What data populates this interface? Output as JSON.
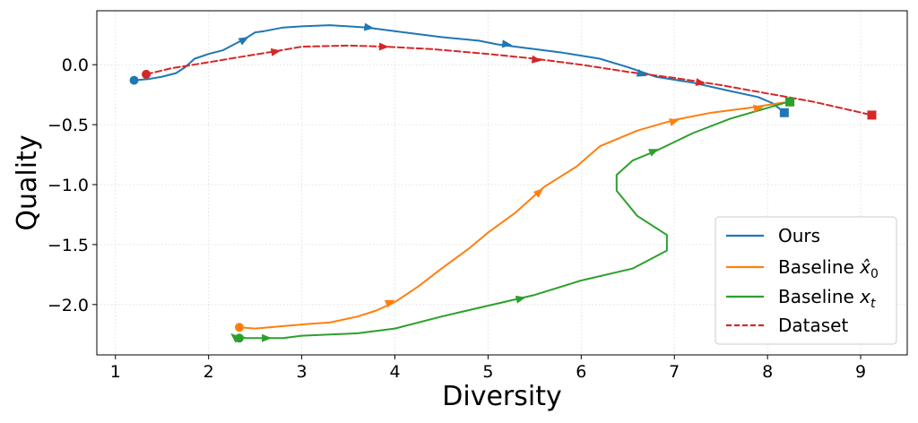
{
  "chart_data": {
    "type": "line",
    "xlabel": "Diversity",
    "ylabel": "Quality",
    "xlim": [
      0.8,
      9.5
    ],
    "ylim": [
      -2.42,
      0.45
    ],
    "xticks": [
      1,
      2,
      3,
      4,
      5,
      6,
      7,
      8,
      9
    ],
    "yticks": [
      0.0,
      -0.5,
      -1.0,
      -1.5,
      -2.0
    ],
    "ytick_labels": [
      "0.0",
      "−0.5",
      "−1.0",
      "−1.5",
      "−2.0"
    ],
    "grid": true,
    "legend_position": "lower-right",
    "series": [
      {
        "name": "Ours",
        "color": "#1f77b4",
        "dashed": false,
        "points": [
          [
            1.2,
            -0.13
          ],
          [
            1.35,
            -0.12
          ],
          [
            1.5,
            -0.1
          ],
          [
            1.65,
            -0.07
          ],
          [
            1.75,
            -0.02
          ],
          [
            1.85,
            0.05
          ],
          [
            2.0,
            0.09
          ],
          [
            2.15,
            0.12
          ],
          [
            2.35,
            0.2
          ],
          [
            2.42,
            0.23
          ],
          [
            2.5,
            0.27
          ],
          [
            2.6,
            0.28
          ],
          [
            2.8,
            0.31
          ],
          [
            3.0,
            0.32
          ],
          [
            3.3,
            0.33
          ],
          [
            3.7,
            0.31
          ],
          [
            4.1,
            0.27
          ],
          [
            4.5,
            0.23
          ],
          [
            4.9,
            0.2
          ],
          [
            5.1,
            0.17
          ],
          [
            5.4,
            0.14
          ],
          [
            5.8,
            0.1
          ],
          [
            6.2,
            0.05
          ],
          [
            6.5,
            -0.02
          ],
          [
            6.8,
            -0.1
          ],
          [
            7.2,
            -0.15
          ],
          [
            7.6,
            -0.22
          ],
          [
            7.9,
            -0.27
          ],
          [
            8.05,
            -0.32
          ],
          [
            8.17,
            -0.39
          ]
        ],
        "arrows_at": [
          [
            2.38,
            0.21
          ],
          [
            3.72,
            0.31
          ],
          [
            5.2,
            0.17
          ],
          [
            6.65,
            -0.08
          ]
        ]
      },
      {
        "name": "Baseline x̂₀",
        "color": "#ff7f0e",
        "dashed": false,
        "points": [
          [
            2.33,
            -2.19
          ],
          [
            2.5,
            -2.2
          ],
          [
            2.8,
            -2.18
          ],
          [
            3.1,
            -2.16
          ],
          [
            3.3,
            -2.15
          ],
          [
            3.6,
            -2.1
          ],
          [
            3.8,
            -2.05
          ],
          [
            4.0,
            -1.98
          ],
          [
            4.25,
            -1.85
          ],
          [
            4.5,
            -1.7
          ],
          [
            4.8,
            -1.53
          ],
          [
            5.0,
            -1.4
          ],
          [
            5.3,
            -1.23
          ],
          [
            5.6,
            -1.02
          ],
          [
            5.95,
            -0.85
          ],
          [
            6.2,
            -0.68
          ],
          [
            6.6,
            -0.55
          ],
          [
            7.0,
            -0.46
          ],
          [
            7.4,
            -0.4
          ],
          [
            7.8,
            -0.36
          ],
          [
            8.05,
            -0.33
          ],
          [
            8.22,
            -0.31
          ]
        ],
        "arrows_at": [
          [
            3.95,
            -1.98
          ],
          [
            5.55,
            -1.06
          ],
          [
            7.0,
            -0.47
          ],
          [
            7.9,
            -0.36
          ]
        ]
      },
      {
        "name": "Baseline x_t",
        "color": "#2ca02c",
        "dashed": false,
        "points": [
          [
            2.33,
            -2.28
          ],
          [
            2.3,
            -2.26
          ],
          [
            2.4,
            -2.28
          ],
          [
            2.6,
            -2.28
          ],
          [
            2.8,
            -2.28
          ],
          [
            3.0,
            -2.26
          ],
          [
            3.3,
            -2.25
          ],
          [
            3.6,
            -2.24
          ],
          [
            4.0,
            -2.2
          ],
          [
            4.5,
            -2.1
          ],
          [
            5.0,
            -2.01
          ],
          [
            5.5,
            -1.92
          ],
          [
            6.0,
            -1.8
          ],
          [
            6.55,
            -1.7
          ],
          [
            6.92,
            -1.55
          ],
          [
            6.92,
            -1.42
          ],
          [
            6.6,
            -1.26
          ],
          [
            6.38,
            -1.05
          ],
          [
            6.38,
            -0.92
          ],
          [
            6.55,
            -0.8
          ],
          [
            6.8,
            -0.72
          ],
          [
            7.2,
            -0.57
          ],
          [
            7.6,
            -0.45
          ],
          [
            8.0,
            -0.36
          ],
          [
            8.22,
            -0.31
          ]
        ],
        "arrows_at": [
          [
            2.28,
            -2.27
          ],
          [
            2.62,
            -2.28
          ],
          [
            5.35,
            -1.95
          ],
          [
            6.78,
            -0.72
          ]
        ]
      },
      {
        "name": "Dataset",
        "color": "#d62728",
        "dashed": true,
        "points": [
          [
            1.33,
            -0.08
          ],
          [
            1.6,
            -0.03
          ],
          [
            2.0,
            0.02
          ],
          [
            2.3,
            0.06
          ],
          [
            2.7,
            0.11
          ],
          [
            3.0,
            0.15
          ],
          [
            3.5,
            0.16
          ],
          [
            3.9,
            0.15
          ],
          [
            4.4,
            0.13
          ],
          [
            5.0,
            0.09
          ],
          [
            5.5,
            0.05
          ],
          [
            6.0,
            0.0
          ],
          [
            6.5,
            -0.06
          ],
          [
            7.0,
            -0.11
          ],
          [
            7.5,
            -0.17
          ],
          [
            8.0,
            -0.24
          ],
          [
            8.5,
            -0.31
          ],
          [
            9.12,
            -0.42
          ]
        ],
        "arrows_at": [
          [
            2.72,
            0.11
          ],
          [
            3.88,
            0.15
          ],
          [
            5.52,
            0.04
          ],
          [
            7.28,
            -0.15
          ]
        ]
      }
    ],
    "start_markers": [
      {
        "series": "Ours",
        "x": 1.2,
        "y": -0.13,
        "shape": "circle"
      },
      {
        "series": "Baseline x̂₀",
        "x": 2.33,
        "y": -2.19,
        "shape": "circle"
      },
      {
        "series": "Baseline x_t",
        "x": 2.33,
        "y": -2.28,
        "shape": "circle"
      },
      {
        "series": "Dataset",
        "x": 1.33,
        "y": -0.08,
        "shape": "circle"
      }
    ],
    "end_markers": [
      {
        "series": "Ours",
        "x": 8.18,
        "y": -0.4,
        "shape": "square"
      },
      {
        "series": "Baseline x̂₀",
        "x": 8.24,
        "y": -0.31,
        "shape": "square"
      },
      {
        "series": "Baseline x_t",
        "x": 8.24,
        "y": -0.31,
        "shape": "square"
      },
      {
        "series": "Dataset",
        "x": 9.12,
        "y": -0.42,
        "shape": "square"
      }
    ]
  },
  "legend": {
    "ours": "Ours",
    "baseline_x0_prefix": "Baseline ",
    "baseline_x0_symbol": "x̂",
    "baseline_x0_sub": "0",
    "baseline_xt_prefix": "Baseline ",
    "baseline_xt_symbol": "x",
    "baseline_xt_sub": "t",
    "dataset": "Dataset"
  }
}
